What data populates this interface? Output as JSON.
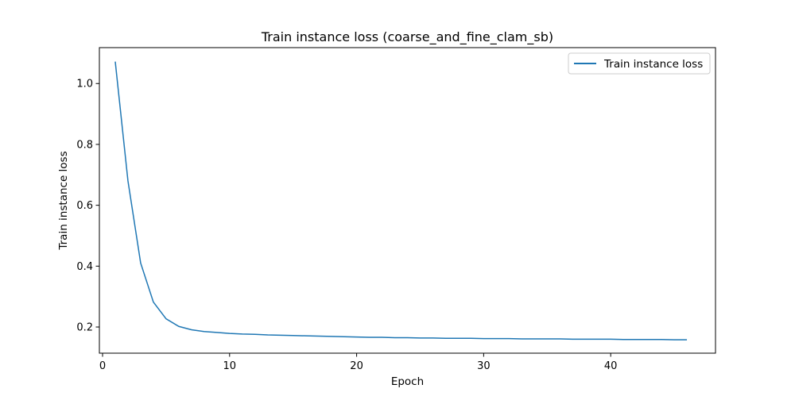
{
  "chart_data": {
    "type": "line",
    "title": "Train instance loss (coarse_and_fine_clam_sb)",
    "xlabel": "Epoch",
    "ylabel": "Train instance loss",
    "xlim": [
      -0.25,
      48.25
    ],
    "ylim": [
      0.114,
      1.118
    ],
    "xticks": [
      0,
      10,
      20,
      30,
      40
    ],
    "xtick_labels": [
      "0",
      "10",
      "20",
      "30",
      "40"
    ],
    "yticks": [
      0.2,
      0.4,
      0.6,
      0.8,
      1.0
    ],
    "ytick_labels": [
      "0.2",
      "0.4",
      "0.6",
      "0.8",
      "1.0"
    ],
    "grid": false,
    "legend_position": "upper-right",
    "color": "#1f77b4",
    "series": [
      {
        "name": "Train instance loss",
        "x": [
          1,
          2,
          3,
          4,
          5,
          6,
          7,
          8,
          9,
          10,
          11,
          12,
          13,
          14,
          15,
          16,
          17,
          18,
          19,
          20,
          21,
          22,
          23,
          24,
          25,
          26,
          27,
          28,
          29,
          30,
          31,
          32,
          33,
          34,
          35,
          36,
          37,
          38,
          39,
          40,
          41,
          42,
          43,
          44,
          45,
          46
        ],
        "y": [
          1.072,
          0.68,
          0.41,
          0.282,
          0.227,
          0.202,
          0.191,
          0.185,
          0.182,
          0.179,
          0.177,
          0.176,
          0.174,
          0.173,
          0.172,
          0.171,
          0.17,
          0.169,
          0.168,
          0.167,
          0.166,
          0.166,
          0.165,
          0.165,
          0.164,
          0.164,
          0.163,
          0.163,
          0.163,
          0.162,
          0.162,
          0.162,
          0.161,
          0.161,
          0.161,
          0.161,
          0.16,
          0.16,
          0.16,
          0.16,
          0.159,
          0.159,
          0.159,
          0.159,
          0.158,
          0.158
        ]
      }
    ]
  }
}
